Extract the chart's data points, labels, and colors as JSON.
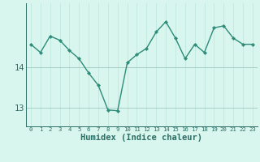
{
  "x": [
    0,
    1,
    2,
    3,
    4,
    5,
    6,
    7,
    8,
    9,
    10,
    11,
    12,
    13,
    14,
    15,
    16,
    17,
    18,
    19,
    20,
    21,
    22,
    23
  ],
  "y": [
    14.55,
    14.35,
    14.75,
    14.65,
    14.4,
    14.2,
    13.85,
    13.55,
    12.95,
    12.93,
    14.1,
    14.3,
    14.45,
    14.85,
    15.1,
    14.7,
    14.2,
    14.55,
    14.35,
    14.95,
    15.0,
    14.7,
    14.55,
    14.55
  ],
  "line_color": "#2d8b78",
  "marker": "D",
  "marker_size": 2.2,
  "bg_color": "#d8f5ee",
  "plot_bg_color": "#d8f5ee",
  "grid_color_h": "#a8cfc6",
  "grid_color_v": "#c0e8e0",
  "xlabel": "Humidex (Indice chaleur)",
  "xlabel_fontsize": 7.5,
  "ytick_labels": [
    "13",
    "14"
  ],
  "ytick_vals": [
    13,
    14
  ],
  "ylim": [
    12.55,
    15.55
  ],
  "xlim": [
    -0.5,
    23.5
  ],
  "tick_color": "#2d6e65",
  "line_width": 1.0,
  "xtick_fontsize": 5.2,
  "ytick_fontsize": 7.5
}
